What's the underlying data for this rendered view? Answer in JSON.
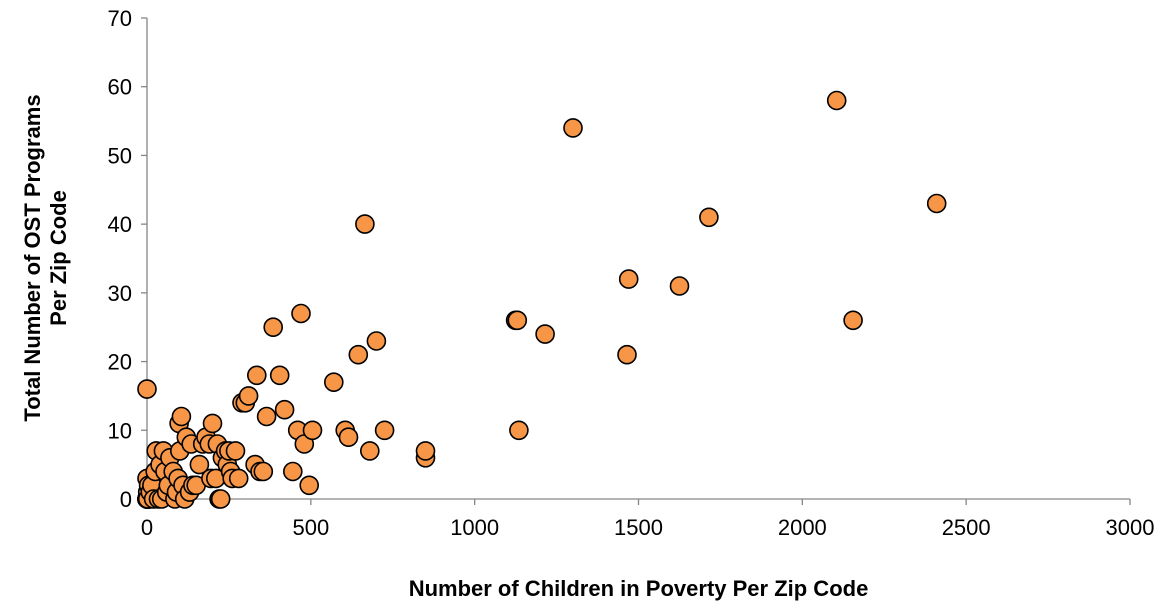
{
  "chart_data": {
    "type": "scatter",
    "title": "",
    "xlabel": "Number of Children in Poverty Per Zip Code",
    "ylabel_lines": [
      "Total Number of OST Programs",
      "Per Zip Code"
    ],
    "xlim": [
      0,
      3000
    ],
    "ylim": [
      0,
      70
    ],
    "x_ticks": [
      "0",
      "500",
      "1000",
      "1500",
      "2000",
      "2500",
      "3000"
    ],
    "y_ticks": [
      "0",
      "10",
      "20",
      "30",
      "40",
      "50",
      "60",
      "70"
    ],
    "grid": false,
    "legend": "none",
    "marker_color": "#f79646",
    "marker_edge": "#000000",
    "series": [
      {
        "points": [
          [
            0,
            0
          ],
          [
            0,
            0
          ],
          [
            0,
            0
          ],
          [
            0,
            0
          ],
          [
            0,
            0
          ],
          [
            0,
            0
          ],
          [
            3,
            0
          ],
          [
            5,
            0
          ],
          [
            8,
            0
          ],
          [
            2,
            1
          ],
          [
            0,
            16
          ],
          [
            0,
            3
          ],
          [
            2,
            0
          ],
          [
            5,
            2
          ],
          [
            10,
            1
          ],
          [
            15,
            2
          ],
          [
            20,
            0
          ],
          [
            25,
            4
          ],
          [
            28,
            7
          ],
          [
            35,
            0
          ],
          [
            40,
            5
          ],
          [
            45,
            0
          ],
          [
            50,
            7
          ],
          [
            55,
            4
          ],
          [
            60,
            1
          ],
          [
            65,
            2
          ],
          [
            70,
            6
          ],
          [
            80,
            4
          ],
          [
            85,
            0
          ],
          [
            90,
            1
          ],
          [
            95,
            3
          ],
          [
            98,
            11
          ],
          [
            100,
            7
          ],
          [
            105,
            12
          ],
          [
            110,
            2
          ],
          [
            115,
            0
          ],
          [
            120,
            9
          ],
          [
            130,
            1
          ],
          [
            135,
            8
          ],
          [
            140,
            2
          ],
          [
            150,
            2
          ],
          [
            160,
            5
          ],
          [
            170,
            8
          ],
          [
            180,
            9
          ],
          [
            190,
            8
          ],
          [
            195,
            3
          ],
          [
            200,
            11
          ],
          [
            210,
            3
          ],
          [
            215,
            8
          ],
          [
            220,
            0
          ],
          [
            225,
            0
          ],
          [
            230,
            6
          ],
          [
            240,
            7
          ],
          [
            245,
            5
          ],
          [
            250,
            7
          ],
          [
            255,
            4
          ],
          [
            260,
            3
          ],
          [
            270,
            7
          ],
          [
            280,
            3
          ],
          [
            290,
            14
          ],
          [
            300,
            14
          ],
          [
            310,
            15
          ],
          [
            330,
            5
          ],
          [
            335,
            18
          ],
          [
            345,
            4
          ],
          [
            355,
            4
          ],
          [
            365,
            12
          ],
          [
            385,
            25
          ],
          [
            405,
            18
          ],
          [
            420,
            13
          ],
          [
            445,
            4
          ],
          [
            460,
            10
          ],
          [
            470,
            27
          ],
          [
            480,
            8
          ],
          [
            495,
            2
          ],
          [
            505,
            10
          ],
          [
            570,
            17
          ],
          [
            605,
            10
          ],
          [
            615,
            9
          ],
          [
            645,
            21
          ],
          [
            665,
            40
          ],
          [
            680,
            7
          ],
          [
            700,
            23
          ],
          [
            725,
            10
          ],
          [
            850,
            6
          ],
          [
            850,
            7
          ],
          [
            1125,
            26
          ],
          [
            1130,
            26
          ],
          [
            1135,
            10
          ],
          [
            1215,
            24
          ],
          [
            1300,
            54
          ],
          [
            1465,
            21
          ],
          [
            1470,
            32
          ],
          [
            1625,
            31
          ],
          [
            1715,
            41
          ],
          [
            2105,
            58
          ],
          [
            2155,
            26
          ],
          [
            2410,
            43
          ]
        ]
      }
    ]
  }
}
